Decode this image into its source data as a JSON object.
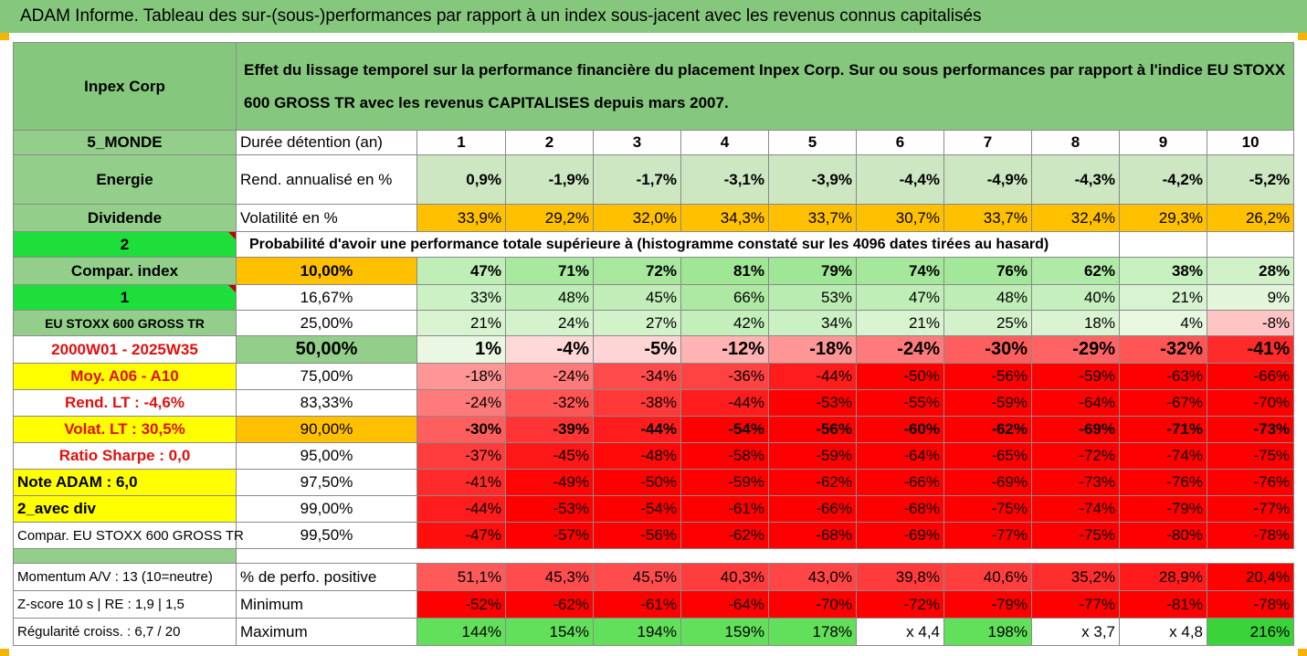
{
  "banner_title": "ADAM Informe. Tableau des sur-(sous-)performances par rapport à un index sous-jacent avec les revenus connus capitalisés",
  "header": {
    "company": "Inpex Corp",
    "description": "Effet du lissage temporel sur la performance financière du placement Inpex Corp. Sur ou sous performances par rapport à l'indice EU STOXX 600 GROSS TR avec les revenus CAPITALISES depuis mars 2007."
  },
  "left_labels": {
    "zone": "5_MONDE",
    "sector": "Energie",
    "dividend": "Dividende",
    "num2": "2",
    "compar_index": "Compar. index",
    "num1": "1",
    "index_name": "EU STOXX 600 GROSS TR",
    "period": "2000W01 - 2025W35",
    "moy": "Moy. A06 - A10",
    "rend_lt": "Rend. LT :   -4,6%",
    "volat_lt": "Volat. LT :   30,5%",
    "sharpe": "Ratio Sharpe :   0,0",
    "note": "Note ADAM : 6,0",
    "avec_div": "2_avec div",
    "compar_full": "Compar. EU STOXX 600 GROSS TR",
    "momentum": "Momentum A/V : 13 (10=neutre)",
    "zscore": "Z-score 10 s  | RE : 1,9  | 1,5",
    "regularite": "Régularité croiss. : 6,7 / 20"
  },
  "rows": {
    "duree": {
      "label": "Durée détention (an)",
      "values": [
        "1",
        "2",
        "3",
        "4",
        "5",
        "6",
        "7",
        "8",
        "9",
        "10"
      ]
    },
    "rend": {
      "label": "Rend. annualisé en %",
      "values": [
        "0,9%",
        "-1,9%",
        "-1,7%",
        "-3,1%",
        "-3,9%",
        "-4,4%",
        "-4,9%",
        "-4,3%",
        "-4,2%",
        "-5,2%"
      ]
    },
    "volat": {
      "label": "Volatilité en %",
      "values": [
        "33,9%",
        "29,2%",
        "32,0%",
        "34,3%",
        "33,7%",
        "30,7%",
        "33,7%",
        "32,4%",
        "29,3%",
        "26,2%"
      ]
    },
    "proba_title": "Probabilité d'avoir une performance totale supérieure à (histogramme constaté sur les 4096 dates tirées au hasard)",
    "percentiles": [
      {
        "label": "10,00%",
        "values": [
          "47%",
          "71%",
          "72%",
          "81%",
          "79%",
          "74%",
          "76%",
          "62%",
          "38%",
          "28%"
        ]
      },
      {
        "label": "16,67%",
        "values": [
          "33%",
          "48%",
          "45%",
          "66%",
          "53%",
          "47%",
          "48%",
          "40%",
          "21%",
          "9%"
        ]
      },
      {
        "label": "25,00%",
        "values": [
          "21%",
          "24%",
          "27%",
          "42%",
          "34%",
          "21%",
          "25%",
          "18%",
          "4%",
          "-8%"
        ]
      },
      {
        "label": "50,00%",
        "values": [
          "1%",
          "-4%",
          "-5%",
          "-12%",
          "-18%",
          "-24%",
          "-30%",
          "-29%",
          "-32%",
          "-41%"
        ]
      },
      {
        "label": "75,00%",
        "values": [
          "-18%",
          "-24%",
          "-34%",
          "-36%",
          "-44%",
          "-50%",
          "-56%",
          "-59%",
          "-63%",
          "-66%"
        ]
      },
      {
        "label": "83,33%",
        "values": [
          "-24%",
          "-32%",
          "-38%",
          "-44%",
          "-53%",
          "-55%",
          "-59%",
          "-64%",
          "-67%",
          "-70%"
        ]
      },
      {
        "label": "90,00%",
        "values": [
          "-30%",
          "-39%",
          "-44%",
          "-54%",
          "-56%",
          "-60%",
          "-62%",
          "-69%",
          "-71%",
          "-73%"
        ]
      },
      {
        "label": "95,00%",
        "values": [
          "-37%",
          "-45%",
          "-48%",
          "-58%",
          "-59%",
          "-64%",
          "-65%",
          "-72%",
          "-74%",
          "-75%"
        ]
      },
      {
        "label": "97,50%",
        "values": [
          "-41%",
          "-49%",
          "-50%",
          "-59%",
          "-62%",
          "-66%",
          "-69%",
          "-73%",
          "-76%",
          "-76%"
        ]
      },
      {
        "label": "99,00%",
        "values": [
          "-44%",
          "-53%",
          "-54%",
          "-61%",
          "-66%",
          "-68%",
          "-75%",
          "-74%",
          "-79%",
          "-77%"
        ]
      },
      {
        "label": "99,50%",
        "values": [
          "-47%",
          "-57%",
          "-56%",
          "-62%",
          "-68%",
          "-69%",
          "-77%",
          "-75%",
          "-80%",
          "-78%"
        ]
      }
    ],
    "positive": {
      "label": "% de perfo. positive",
      "values": [
        "51,1%",
        "45,3%",
        "45,5%",
        "40,3%",
        "43,0%",
        "39,8%",
        "40,6%",
        "35,2%",
        "28,9%",
        "20,4%"
      ]
    },
    "minimum": {
      "label": "Minimum",
      "values": [
        "-52%",
        "-62%",
        "-61%",
        "-64%",
        "-70%",
        "-72%",
        "-79%",
        "-77%",
        "-81%",
        "-78%"
      ]
    },
    "maximum": {
      "label": "Maximum",
      "values": [
        "144%",
        "154%",
        "194%",
        "159%",
        "178%",
        "x 4,4",
        "198%",
        "x 3,7",
        "x 4,8",
        "216%"
      ]
    }
  },
  "colors": {
    "header_green": "#86c77e",
    "orange": "#ffc000",
    "bright_green": "#1dde3a",
    "yellow": "#ffff00",
    "red": "#ff0000",
    "max_green": "#63e05b"
  }
}
